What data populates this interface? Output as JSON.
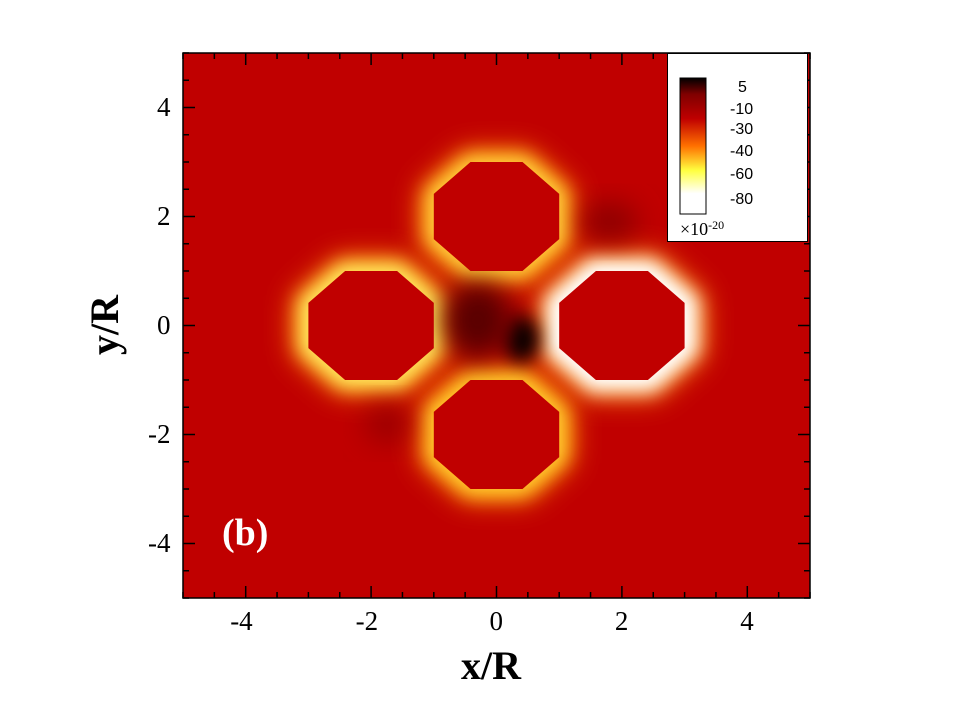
{
  "chart_data": {
    "type": "heatmap",
    "panel_label": "(b)",
    "xlabel": "x/R",
    "ylabel": "y/R",
    "xlim": [
      -5,
      5
    ],
    "ylim": [
      -5,
      5
    ],
    "x_ticks": [
      -4,
      -2,
      0,
      2,
      4
    ],
    "y_ticks": [
      -4,
      -2,
      0,
      2,
      4
    ],
    "x_tick_labels": [
      "-4",
      "-2",
      "0",
      "2",
      "4"
    ],
    "y_tick_labels": [
      "4",
      "2",
      "0",
      "-2",
      "-4"
    ],
    "obstacles": [
      {
        "shape": "octagon",
        "center_x": 0,
        "center_y": 2,
        "radius": 1
      },
      {
        "shape": "octagon",
        "center_x": -2,
        "center_y": 0,
        "radius": 1
      },
      {
        "shape": "octagon",
        "center_x": 2,
        "center_y": 0,
        "radius": 1
      },
      {
        "shape": "octagon",
        "center_x": 0,
        "center_y": -2,
        "radius": 1
      }
    ],
    "legend": {
      "placement": "top-right",
      "levels": [
        "5",
        "-10",
        "-30",
        "-40",
        "-60",
        "-80"
      ],
      "scale_base": "×10",
      "scale_exponent": "-20",
      "colors": [
        "#000000",
        "#800000",
        "#c00000",
        "#ff7000",
        "#ffff40",
        "#ffffff"
      ]
    },
    "background_color": "#c00000"
  }
}
